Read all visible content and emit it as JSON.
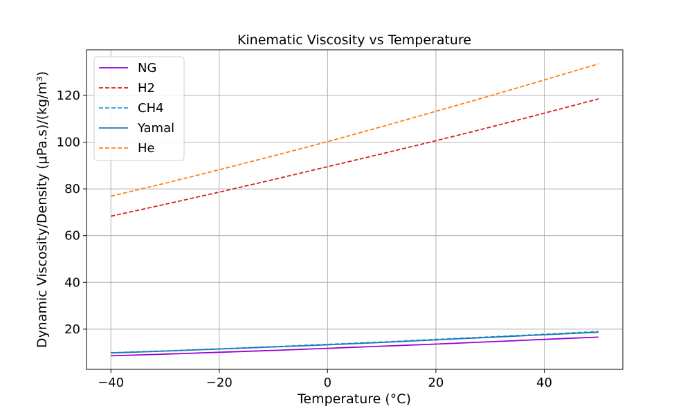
{
  "chart_data": {
    "type": "line",
    "title": "Kinematic Viscosity vs Temperature",
    "xlabel": "Temperature (°C)",
    "ylabel": "Dynamic Viscosity/Density (μPa.s)/(kg/m³)",
    "xlim": [
      -44.5,
      54.5
    ],
    "ylim": [
      2.8,
      139.5
    ],
    "xticks": [
      -40,
      -20,
      0,
      20,
      40
    ],
    "xtick_labels": [
      "−40",
      "−20",
      "0",
      "20",
      "40"
    ],
    "yticks": [
      20,
      40,
      60,
      80,
      100,
      120
    ],
    "ytick_labels": [
      "20",
      "40",
      "60",
      "80",
      "100",
      "120"
    ],
    "grid": true,
    "legend_position": "top-left",
    "x": [
      -40,
      -30,
      -20,
      -10,
      0,
      10,
      20,
      30,
      40,
      50
    ],
    "series": [
      {
        "name": "NG",
        "color": "#9400d3",
        "dash": "solid",
        "values": [
          8.6,
          9.3,
          10.1,
          10.9,
          11.8,
          12.7,
          13.6,
          14.6,
          15.6,
          16.6
        ]
      },
      {
        "name": "H2",
        "color": "#d62020",
        "dash": "dashed",
        "values": [
          68.3,
          73.4,
          78.6,
          84.0,
          89.5,
          95.0,
          100.6,
          106.4,
          112.4,
          118.5
        ]
      },
      {
        "name": "CH4",
        "color": "#1f9be0",
        "dash": "dashed",
        "values": [
          9.9,
          10.7,
          11.6,
          12.5,
          13.5,
          14.5,
          15.6,
          16.7,
          17.8,
          19.0
        ]
      },
      {
        "name": "Yamal",
        "color": "#1f77b4",
        "dash": "solid",
        "values": [
          9.8,
          10.6,
          11.5,
          12.4,
          13.3,
          14.3,
          15.4,
          16.5,
          17.6,
          18.7
        ]
      },
      {
        "name": "He",
        "color": "#ff7f0e",
        "dash": "dashed",
        "values": [
          76.9,
          82.4,
          88.2,
          94.1,
          100.2,
          106.6,
          113.2,
          119.8,
          126.6,
          133.5
        ]
      }
    ]
  }
}
